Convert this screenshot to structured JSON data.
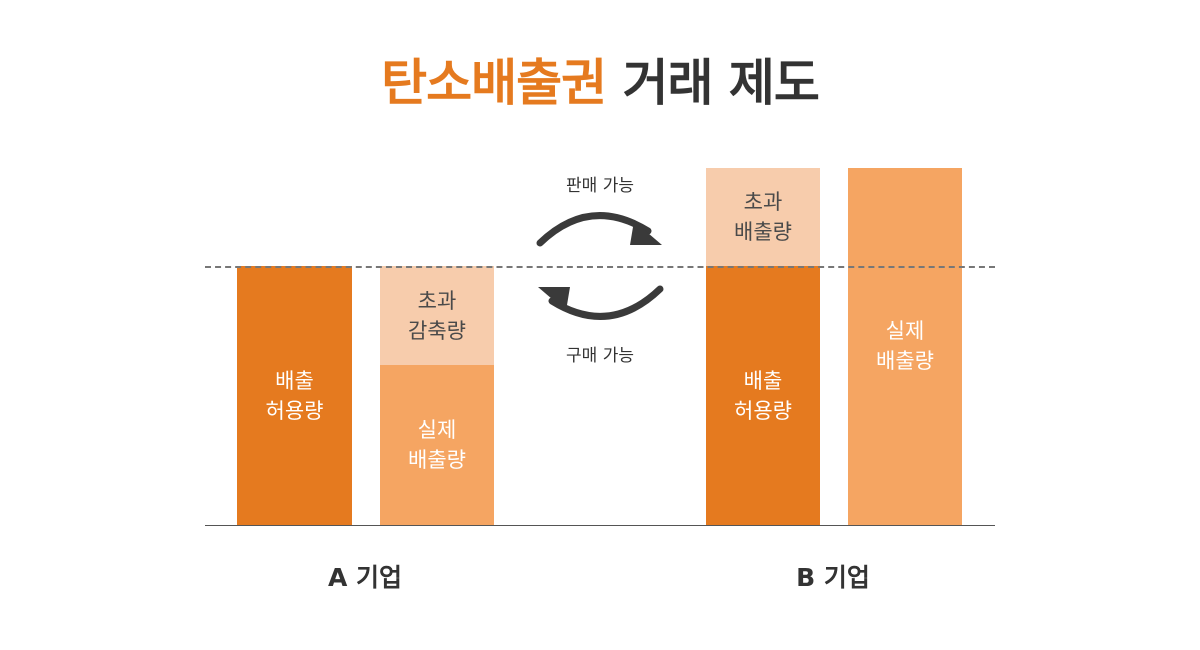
{
  "title": {
    "accent": "탄소배출권",
    "rest": "거래 제도"
  },
  "company_a": {
    "name": "A 기업",
    "allowance": [
      "배출",
      "허용량"
    ],
    "excess_reduction": [
      "초과",
      "감축량"
    ],
    "actual": [
      "실제",
      "배출량"
    ]
  },
  "company_b": {
    "name": "B 기업",
    "excess_emission": [
      "초과",
      "배출량"
    ],
    "allowance": [
      "배출",
      "허용량"
    ],
    "actual": [
      "실제",
      "배출량"
    ]
  },
  "arrows": {
    "sell": "판매 가능",
    "buy": "구매 가능"
  },
  "colors": {
    "dark_orange": "#e57a1f",
    "mid_orange": "#f5a562",
    "light_orange": "#f7ccac",
    "arrow": "#3a3a3a"
  }
}
